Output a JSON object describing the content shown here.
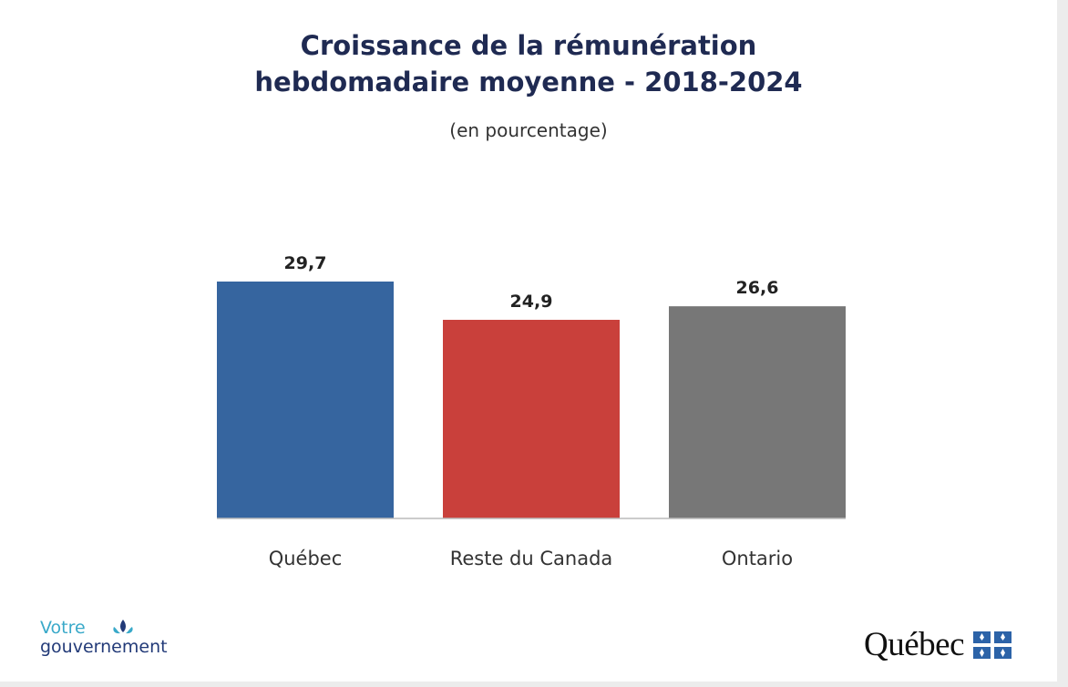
{
  "title_lines": [
    "Croissance de la rémunération",
    "hebdomadaire moyenne - 2018-2024"
  ],
  "subtitle": "(en pourcentage)",
  "chart_data": {
    "type": "bar",
    "title": "Croissance de la rémunération hebdomadaire moyenne - 2018-2024",
    "subtitle": "(en pourcentage)",
    "categories": [
      "Québec",
      "Reste du Canada",
      "Ontario"
    ],
    "values": [
      29.7,
      24.9,
      26.6
    ],
    "value_labels": [
      "29,7",
      "24,9",
      "26,6"
    ],
    "colors": [
      "#36659f",
      "#c9403b",
      "#777777"
    ],
    "ylim": [
      0,
      30
    ],
    "grid": false,
    "legend": "none"
  },
  "logos": {
    "left_line1": "Votre",
    "left_line2": "gouvernement",
    "right_word": "Québec",
    "accent": "#39a9c9",
    "navy": "#223a78",
    "flag_blue": "#2c63a8"
  }
}
